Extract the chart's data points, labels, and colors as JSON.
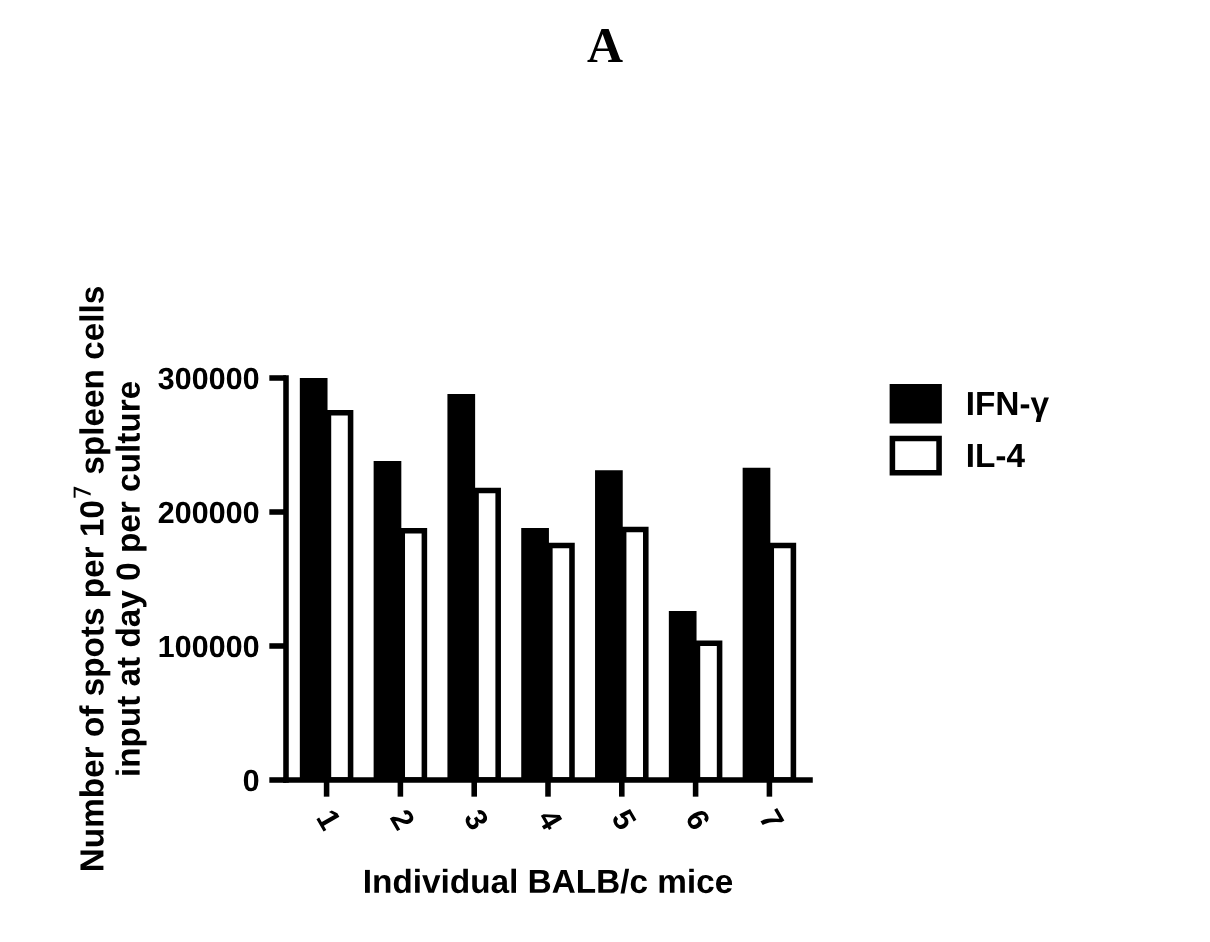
{
  "chart_data": {
    "type": "bar",
    "title": "A",
    "xlabel": "Individual BALB/c mice",
    "ylabel": "Number of spots per 10$^{7}$ spleen cells\ninput at day 0 per culture",
    "categories": [
      "1",
      "2",
      "3",
      "4",
      "5",
      "6",
      "7"
    ],
    "series": [
      {
        "name": "IFN-γ",
        "color": "#000000",
        "values": [
          298000,
          236000,
          286000,
          186000,
          229000,
          124000,
          231000
        ]
      },
      {
        "name": "IL-4",
        "color": "#ffffff",
        "values": [
          274000,
          186000,
          216000,
          175000,
          187000,
          102000,
          175000
        ]
      }
    ],
    "ylim": [
      0,
      300000
    ],
    "yticks": [
      0,
      100000,
      200000,
      300000
    ],
    "grid": false,
    "legend": "right"
  }
}
